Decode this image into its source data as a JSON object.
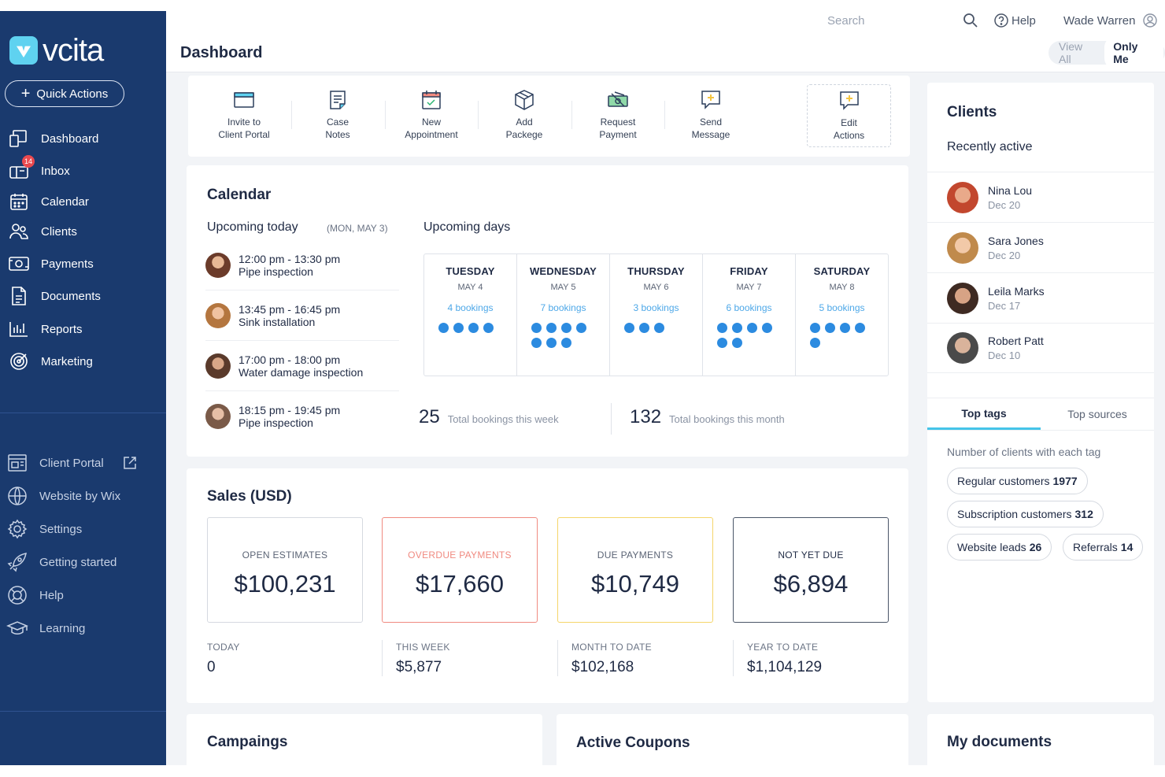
{
  "app": {
    "name": "vcita"
  },
  "sidebar": {
    "quick_actions": "Quick Actions",
    "primary": [
      {
        "label": "Dashboard",
        "icon": "dashboard-icon"
      },
      {
        "label": "Inbox",
        "icon": "inbox-icon",
        "badge": "14"
      },
      {
        "label": "Calendar",
        "icon": "calendar-icon"
      },
      {
        "label": "Clients",
        "icon": "clients-icon"
      },
      {
        "label": "Payments",
        "icon": "payments-icon"
      },
      {
        "label": "Documents",
        "icon": "documents-icon"
      },
      {
        "label": "Reports",
        "icon": "reports-icon"
      },
      {
        "label": "Marketing",
        "icon": "marketing-icon"
      }
    ],
    "secondary": [
      {
        "label": "Client Portal",
        "icon": "client-portal-icon"
      },
      {
        "label": "Website by Wix",
        "icon": "globe-icon"
      },
      {
        "label": "Settings",
        "icon": "gear-icon"
      },
      {
        "label": "Getting started",
        "icon": "rocket-icon"
      },
      {
        "label": "Help",
        "icon": "lifebuoy-icon"
      },
      {
        "label": "Learning",
        "icon": "graduation-cap-icon"
      }
    ]
  },
  "topbar": {
    "search_placeholder": "Search",
    "help": "Help",
    "user_name": "Wade Warren"
  },
  "header": {
    "title": "Dashboard",
    "view_all": "View All",
    "only_me": "Only Me"
  },
  "actions": [
    {
      "line1": "Invite to",
      "line2": "Client Portal"
    },
    {
      "line1": "Case",
      "line2": "Notes"
    },
    {
      "line1": "New",
      "line2": "Appointment"
    },
    {
      "line1": "Add",
      "line2": "Packege"
    },
    {
      "line1": "Request",
      "line2": "Payment"
    },
    {
      "line1": "Send",
      "line2": "Message"
    },
    {
      "line1": "Edit",
      "line2": "Actions"
    }
  ],
  "calendar": {
    "title": "Calendar",
    "upcoming_today": "Upcoming today",
    "today_date": "(MON, MAY 3)",
    "upcoming_days": "Upcoming days",
    "appointments": [
      {
        "time": "12:00 pm - 13:30 pm",
        "title": "Pipe inspection"
      },
      {
        "time": "13:45 pm - 16:45 pm",
        "title": "Sink installation"
      },
      {
        "time": "17:00 pm - 18:00 pm",
        "title": "Water damage inspection"
      },
      {
        "time": "18:15 pm - 19:45 pm",
        "title": "Pipe inspection"
      }
    ],
    "days": [
      {
        "name": "TUESDAY",
        "date": "MAY 4",
        "bookings": "4 bookings",
        "count": 4
      },
      {
        "name": "WEDNESDAY",
        "date": "MAY 5",
        "bookings": "7 bookings",
        "count": 7
      },
      {
        "name": "THURSDAY",
        "date": "MAY 6",
        "bookings": "3 bookings",
        "count": 3
      },
      {
        "name": "FRIDAY",
        "date": "MAY 7",
        "bookings": "6 bookings",
        "count": 6
      },
      {
        "name": "SATURDAY",
        "date": "MAY 8",
        "bookings": "5 bookings",
        "count": 5
      }
    ],
    "week_total": "25",
    "week_label": "Total bookings this week",
    "month_total": "132",
    "month_label": "Total bookings this month"
  },
  "sales": {
    "title": "Sales (USD)",
    "tiles": [
      {
        "label": "OPEN ESTIMATES",
        "value": "$100,231"
      },
      {
        "label": "OVERDUE PAYMENTS",
        "value": "$17,660"
      },
      {
        "label": "DUE PAYMENTS",
        "value": "$10,749"
      },
      {
        "label": "NOT YET DUE",
        "value": "$6,894"
      }
    ],
    "periods": [
      {
        "label": "TODAY",
        "value": "0"
      },
      {
        "label": "THIS WEEK",
        "value": "$5,877"
      },
      {
        "label": "MONTH TO DATE",
        "value": "$102,168"
      },
      {
        "label": "YEAR TO DATE",
        "value": "$1,104,129"
      }
    ]
  },
  "clients": {
    "title": "Clients",
    "subtitle": "Recently active",
    "list": [
      {
        "name": "Nina Lou",
        "date": "Dec 20"
      },
      {
        "name": "Sara Jones",
        "date": "Dec 20"
      },
      {
        "name": "Leila Marks",
        "date": "Dec 17"
      },
      {
        "name": "Robert Patt",
        "date": "Dec 10"
      }
    ],
    "tab_tags": "Top tags",
    "tab_sources": "Top sources",
    "tags_caption": "Number of clients with each tag",
    "tags": [
      {
        "name": "Regular customers",
        "count": "1977"
      },
      {
        "name": "Subscription customers",
        "count": "312"
      },
      {
        "name": "Website leads",
        "count": "26"
      },
      {
        "name": "Referrals",
        "count": "14"
      }
    ]
  },
  "bottom": {
    "campaigns": "Campaings",
    "coupons": "Active Coupons",
    "documents": "My documents"
  },
  "colors": {
    "sidebar": "#1a3a6e",
    "accent": "#45c4e8",
    "dot": "#2c8be0",
    "overdue": "#f08a80",
    "due": "#f5d56a"
  }
}
